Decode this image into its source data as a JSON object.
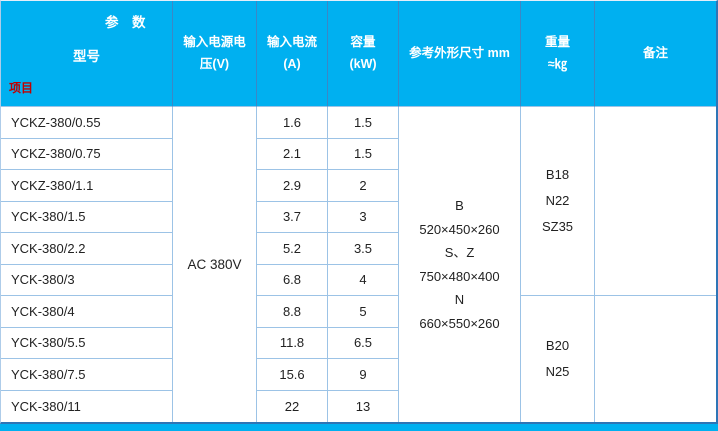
{
  "colors": {
    "header_bg": "#00b0f0",
    "item_label_red": "#c00000",
    "grid_line": "#9cc3e6",
    "outer_border": "#2e75b6",
    "bottom_strip": "#00b0f0"
  },
  "table": {
    "corner": {
      "param_label": "参　数",
      "model_label": "型号",
      "item_label": "项目"
    },
    "col_headers": [
      {
        "line1": "输入电源电",
        "line2": "压(V)"
      },
      {
        "line1": "输入电流",
        "line2": "(A)"
      },
      {
        "line1": "容量",
        "line2": "(kW)"
      },
      {
        "line1": "参考外形尺寸 mm"
      },
      {
        "line1": "重量",
        "line2": "≈㎏"
      },
      {
        "line1": "备注"
      }
    ],
    "voltage_merged": "AC 380V",
    "rows": [
      {
        "model": "YCKZ-380/0.55",
        "input_current_a": "1.6",
        "capacity_kw": "1.5"
      },
      {
        "model": "YCKZ-380/0.75",
        "input_current_a": "2.1",
        "capacity_kw": "1.5"
      },
      {
        "model": "YCKZ-380/1.1",
        "input_current_a": "2.9",
        "capacity_kw": "2"
      },
      {
        "model": "YCK-380/1.5",
        "input_current_a": "3.7",
        "capacity_kw": "3"
      },
      {
        "model": "YCK-380/2.2",
        "input_current_a": "5.2",
        "capacity_kw": "3.5"
      },
      {
        "model": "YCK-380/3",
        "input_current_a": "6.8",
        "capacity_kw": "4"
      },
      {
        "model": "YCK-380/4",
        "input_current_a": "8.8",
        "capacity_kw": "5"
      },
      {
        "model": "YCK-380/5.5",
        "input_current_a": "11.8",
        "capacity_kw": "6.5"
      },
      {
        "model": "YCK-380/7.5",
        "input_current_a": "15.6",
        "capacity_kw": "9"
      },
      {
        "model": "YCK-380/11",
        "input_current_a": "22",
        "capacity_kw": "13"
      }
    ],
    "dimensions": {
      "lines": [
        "B",
        "520×450×260",
        "S、Z",
        "750×480×400",
        "N",
        "660×550×260"
      ]
    },
    "weights": [
      {
        "l1": "B18",
        "l2": "N22",
        "l3": "SZ35"
      },
      {
        "l1": "B20",
        "l2": "N25"
      }
    ],
    "notes": [
      "",
      ""
    ]
  }
}
